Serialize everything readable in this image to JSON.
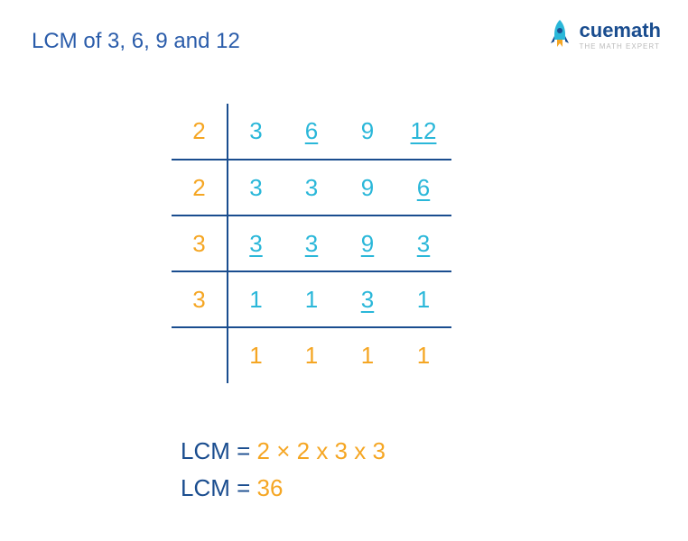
{
  "title_prefix": "LCM of ",
  "title_numbers": "3, 6, 9 and 12",
  "colors": {
    "blue": "#1a4d8f",
    "cyan": "#2ab7d9",
    "orange": "#f5a623",
    "title_blue": "#2a5caa"
  },
  "logo": {
    "name": "cuemath",
    "tagline": "THE MATH EXPERT"
  },
  "table": {
    "rows": [
      {
        "divisor": {
          "value": "2",
          "color": "#f5a623"
        },
        "cells": [
          {
            "value": "3",
            "color": "#2ab7d9",
            "underline": false
          },
          {
            "value": "6",
            "color": "#2ab7d9",
            "underline": true
          },
          {
            "value": "9",
            "color": "#2ab7d9",
            "underline": false
          },
          {
            "value": "12",
            "color": "#2ab7d9",
            "underline": true
          }
        ],
        "has_line": true
      },
      {
        "divisor": {
          "value": "2",
          "color": "#f5a623"
        },
        "cells": [
          {
            "value": "3",
            "color": "#2ab7d9",
            "underline": false
          },
          {
            "value": "3",
            "color": "#2ab7d9",
            "underline": false
          },
          {
            "value": "9",
            "color": "#2ab7d9",
            "underline": false
          },
          {
            "value": "6",
            "color": "#2ab7d9",
            "underline": true
          }
        ],
        "has_line": true
      },
      {
        "divisor": {
          "value": "3",
          "color": "#f5a623"
        },
        "cells": [
          {
            "value": "3",
            "color": "#2ab7d9",
            "underline": true
          },
          {
            "value": "3",
            "color": "#2ab7d9",
            "underline": true
          },
          {
            "value": "9",
            "color": "#2ab7d9",
            "underline": true
          },
          {
            "value": "3",
            "color": "#2ab7d9",
            "underline": true
          }
        ],
        "has_line": true
      },
      {
        "divisor": {
          "value": "3",
          "color": "#f5a623"
        },
        "cells": [
          {
            "value": "1",
            "color": "#2ab7d9",
            "underline": false
          },
          {
            "value": "1",
            "color": "#2ab7d9",
            "underline": false
          },
          {
            "value": "3",
            "color": "#2ab7d9",
            "underline": true
          },
          {
            "value": "1",
            "color": "#2ab7d9",
            "underline": false
          }
        ],
        "has_line": true
      },
      {
        "divisor": {
          "value": "",
          "color": "#f5a623"
        },
        "cells": [
          {
            "value": "1",
            "color": "#f5a623",
            "underline": false
          },
          {
            "value": "1",
            "color": "#f5a623",
            "underline": false
          },
          {
            "value": "1",
            "color": "#f5a623",
            "underline": false
          },
          {
            "value": "1",
            "color": "#f5a623",
            "underline": false
          }
        ],
        "has_line": false
      }
    ]
  },
  "result": {
    "label": "LCM",
    "equals": " = ",
    "factors": "2 × 2 x 3 x 3",
    "value": "36"
  }
}
